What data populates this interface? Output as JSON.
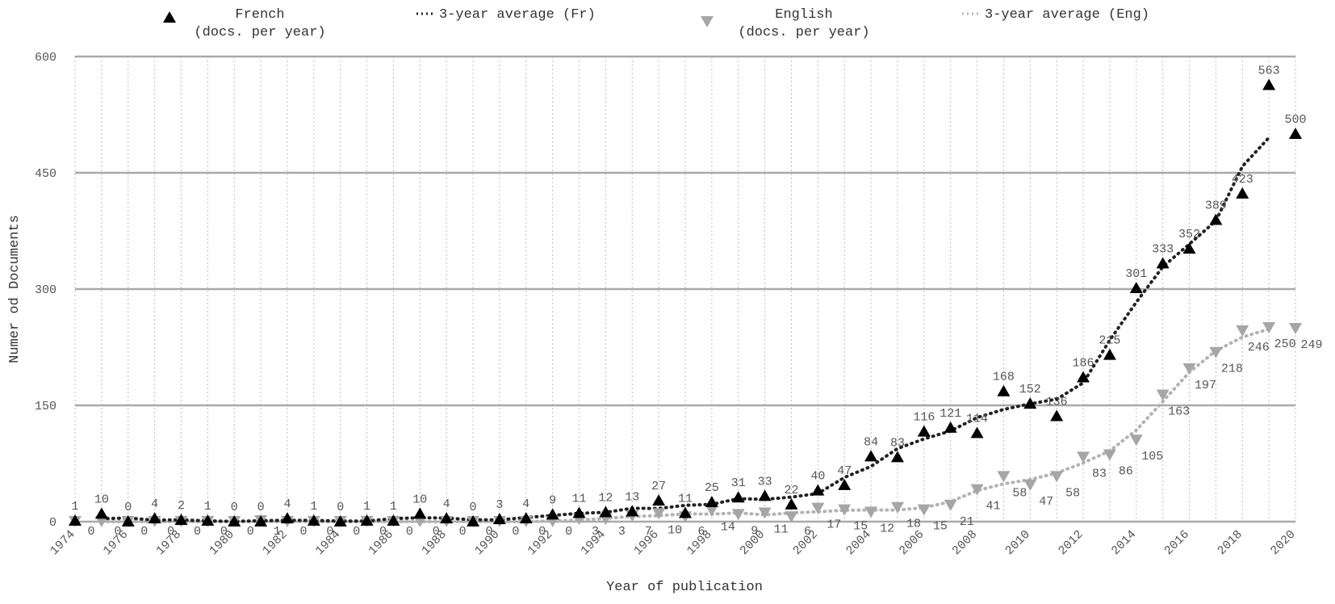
{
  "chart_data": {
    "type": "line",
    "xlabel": "Year of publication",
    "ylabel": "Numer od Documents",
    "ylim": [
      0,
      600
    ],
    "yticks": [
      0,
      150,
      300,
      450,
      600
    ],
    "xlim": [
      1974,
      2020
    ],
    "xticks": [
      1974,
      1976,
      1978,
      1980,
      1982,
      1984,
      1986,
      1988,
      1990,
      1992,
      1994,
      1996,
      1998,
      2000,
      2002,
      2004,
      2006,
      2008,
      2010,
      2012,
      2014,
      2016,
      2018,
      2020
    ],
    "grid": {
      "horizontal": true,
      "vertical": true
    },
    "legend_position": "top",
    "x": [
      1974,
      1975,
      1976,
      1977,
      1978,
      1979,
      1980,
      1981,
      1982,
      1983,
      1984,
      1985,
      1986,
      1987,
      1988,
      1989,
      1990,
      1991,
      1992,
      1993,
      1994,
      1995,
      1996,
      1997,
      1998,
      1999,
      2000,
      2001,
      2002,
      2003,
      2004,
      2005,
      2006,
      2007,
      2008,
      2009,
      2010,
      2011,
      2012,
      2013,
      2014,
      2015,
      2016,
      2017,
      2018,
      2019,
      2020
    ],
    "series": [
      {
        "name": "French\n(docs. per year)",
        "color": "#000000",
        "marker": "triangle-up",
        "values": [
          1,
          10,
          0,
          4,
          2,
          1,
          0,
          0,
          4,
          1,
          0,
          1,
          1,
          10,
          4,
          0,
          3,
          4,
          9,
          11,
          12,
          13,
          27,
          11,
          25,
          31,
          33,
          22,
          40,
          47,
          84,
          83,
          116,
          121,
          114,
          168,
          152,
          136,
          186,
          215,
          301,
          333,
          352,
          389,
          423,
          563,
          500
        ]
      },
      {
        "name": "3-year average (Fr)",
        "color": "#222222",
        "style": "dotted",
        "values": [
          null,
          3.7,
          4.7,
          2.0,
          2.3,
          1.0,
          0.3,
          1.3,
          1.7,
          1.7,
          0.7,
          0.7,
          4.0,
          5.0,
          4.7,
          2.3,
          2.3,
          5.3,
          8.0,
          10.7,
          12.0,
          17.3,
          17.0,
          21.0,
          22.3,
          29.7,
          28.7,
          31.7,
          36.3,
          57.0,
          71.3,
          94.3,
          106.7,
          117.0,
          134.3,
          144.7,
          152.0,
          158.0,
          179.0,
          234.0,
          283.0,
          328.7,
          358.0,
          388.0,
          458.3,
          495.3,
          null
        ]
      },
      {
        "name": "English\n(docs. per year)",
        "color": "#a6a6a6",
        "marker": "triangle-down",
        "values": [
          0,
          0,
          0,
          0,
          0,
          0,
          0,
          1,
          0,
          0,
          0,
          0,
          0,
          0,
          0,
          0,
          0,
          0,
          0,
          3,
          3,
          7,
          10,
          6,
          14,
          9,
          11,
          6,
          17,
          15,
          12,
          18,
          15,
          21,
          41,
          58,
          47,
          58,
          83,
          86,
          105,
          163,
          197,
          218,
          246,
          250,
          249
        ]
      },
      {
        "name": "3-year average (Eng)",
        "color": "#b3b3b3",
        "style": "dotted",
        "values": [
          null,
          0,
          0,
          0,
          0,
          0,
          0.3,
          0.3,
          0.3,
          0,
          0,
          0,
          0,
          0,
          0,
          0,
          0,
          0,
          1.0,
          2.0,
          4.3,
          6.7,
          7.7,
          10.0,
          9.7,
          11.3,
          8.7,
          11.3,
          12.7,
          14.7,
          15.0,
          15.0,
          18.0,
          25.7,
          40.0,
          48.7,
          54.3,
          62.7,
          75.7,
          91.3,
          118.0,
          155.0,
          192.7,
          220.3,
          238.0,
          248.3,
          null
        ]
      }
    ],
    "labels": {
      "french": [
        "1",
        "10",
        "0",
        "4",
        "2",
        "1",
        "0",
        "0",
        "4",
        "1",
        "0",
        "1",
        "1",
        "10",
        "4",
        "0",
        "3",
        "4",
        "9",
        "11",
        "12",
        "13",
        "27",
        "11",
        "25",
        "31",
        "33",
        "22",
        "40",
        "47",
        "84",
        "83",
        "116",
        "121",
        "114",
        "168",
        "152",
        "136",
        "186",
        "215",
        "301",
        "333",
        "352",
        "389",
        "423",
        "563",
        "500"
      ],
      "english": [
        "0",
        "0",
        "0",
        "0",
        "0",
        "0",
        "0",
        "1",
        "0",
        "0",
        "0",
        "0",
        "0",
        "0",
        "0",
        "0",
        "0",
        "0",
        "0",
        "3",
        "3",
        "7",
        "10",
        "6",
        "14",
        "9",
        "11",
        "6",
        "17",
        "15",
        "12",
        "18",
        "15",
        "21",
        "41",
        "58",
        "47",
        "58",
        "83",
        "86",
        "105",
        "163",
        "197",
        "218",
        "246",
        "250",
        "249"
      ]
    }
  }
}
